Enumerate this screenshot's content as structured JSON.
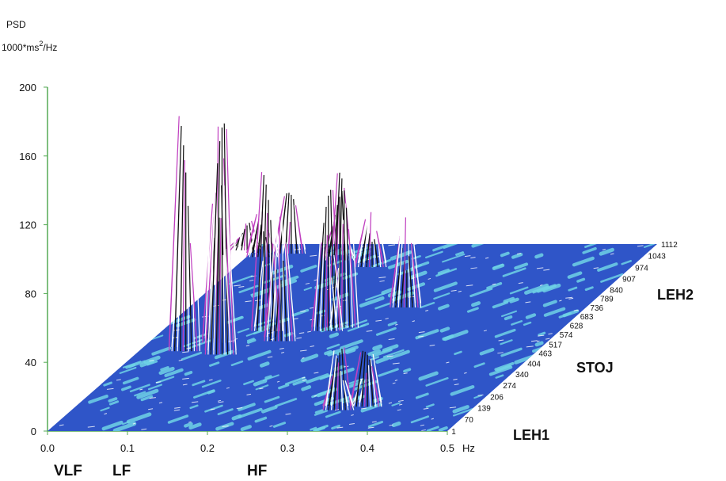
{
  "chart_data": {
    "type": "surface-3d",
    "title": "",
    "ylabel_line1": "PSD",
    "ylabel_line2_prefix": "1000*ms",
    "ylabel_line2_sup": "2",
    "ylabel_line2_suffix": "/Hz",
    "xlabel": "Hz",
    "x_ticks": [
      "0.0",
      "0.1",
      "0.2",
      "0.3",
      "0.4",
      "0.5"
    ],
    "y_ticks": [
      "0",
      "40",
      "80",
      "120",
      "160",
      "200"
    ],
    "z_ticks": [
      "1",
      "70",
      "139",
      "206",
      "274",
      "340",
      "404",
      "463",
      "517",
      "574",
      "628",
      "683",
      "736",
      "789",
      "840",
      "907",
      "974",
      "1043",
      "1112"
    ],
    "xlim": [
      0,
      0.5
    ],
    "ylim": [
      0,
      200
    ],
    "band_labels": [
      "VLF",
      "LF",
      "HF"
    ],
    "phase_labels": [
      "LEH1",
      "STOJ",
      "LEH2"
    ],
    "peaks": [
      {
        "x": 0.055,
        "z": 500,
        "psd": 135
      },
      {
        "x": 0.085,
        "z": 550,
        "psd": 125
      },
      {
        "x": 0.105,
        "z": 480,
        "psd": 132
      },
      {
        "x": 0.13,
        "z": 620,
        "psd": 90
      },
      {
        "x": 0.16,
        "z": 560,
        "psd": 70
      },
      {
        "x": 0.205,
        "z": 620,
        "psd": 80
      },
      {
        "x": 0.22,
        "z": 640,
        "psd": 88
      },
      {
        "x": 0.27,
        "z": 760,
        "psd": 50
      },
      {
        "x": 0.33,
        "z": 150,
        "psd": 34
      },
      {
        "x": 0.36,
        "z": 170,
        "psd": 30
      },
      {
        "x": 0.17,
        "z": 1000,
        "psd": 30
      },
      {
        "x": 0.12,
        "z": 1040,
        "psd": 40
      },
      {
        "x": 0.05,
        "z": 1080,
        "psd": 33
      },
      {
        "x": 0.02,
        "z": 1060,
        "psd": 25
      },
      {
        "x": -0.01,
        "z": 1100,
        "psd": 15
      }
    ]
  },
  "colors": {
    "floor": "#2f55c8",
    "cyan": "#6fd3e6",
    "wire_dark": "#111111",
    "wire_light": "#ffffff",
    "magenta": "#c040c0",
    "red": "#d03030",
    "axis": "#55aa55"
  }
}
